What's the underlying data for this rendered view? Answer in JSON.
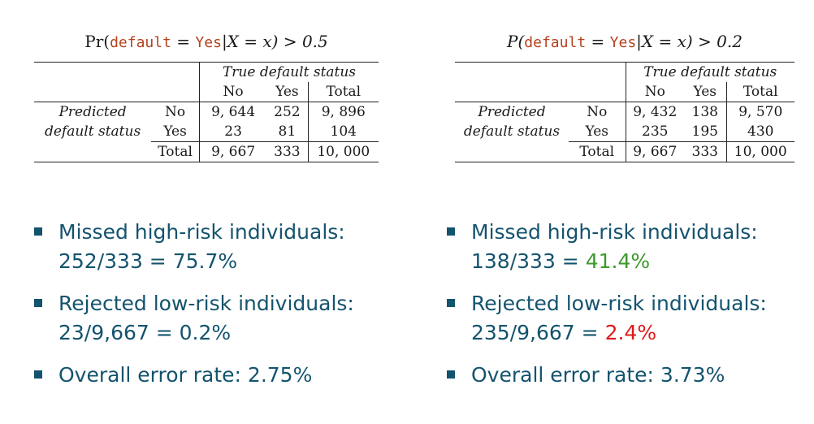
{
  "left_panel": {
    "title": {
      "prefix": "Pr(",
      "code": "default",
      "eq": " = ",
      "code2": "Yes",
      "cond": "|X = x) > 0.5"
    },
    "table": {
      "header_group": "True default status",
      "col_headers": [
        "No",
        "Yes",
        "Total"
      ],
      "row_group_lines": [
        "Predicted",
        "default status"
      ],
      "rows": [
        {
          "label": "No",
          "cells": [
            "9, 644",
            "252",
            "9, 896"
          ]
        },
        {
          "label": "Yes",
          "cells": [
            "23",
            "81",
            "104"
          ]
        }
      ],
      "total_row": {
        "label": "Total",
        "cells": [
          "9, 667",
          "333",
          "10, 000"
        ]
      }
    }
  },
  "right_panel": {
    "title": {
      "prefix": "P(",
      "code": "default",
      "eq": " = ",
      "code2": "Yes",
      "cond": "|X = x) > 0.2"
    },
    "table": {
      "header_group": "True default status",
      "col_headers": [
        "No",
        "Yes",
        "Total"
      ],
      "row_group_lines": [
        "Predicted",
        "default status"
      ],
      "rows": [
        {
          "label": "No",
          "cells": [
            "9, 432",
            "138",
            "9, 570"
          ]
        },
        {
          "label": "Yes",
          "cells": [
            "235",
            "195",
            "430"
          ]
        }
      ],
      "total_row": {
        "label": "Total",
        "cells": [
          "9, 667",
          "333",
          "10, 000"
        ]
      }
    }
  },
  "left_bullets": [
    {
      "line1": "Missed high-risk individuals:",
      "line2_prefix": "252/333 = ",
      "line2_value": "75.7%"
    },
    {
      "line1": "Rejected low-risk individuals:",
      "line2_prefix": "23/9,667 = ",
      "line2_value": "0.2%"
    },
    {
      "line1": "Overall error rate: 2.75%"
    }
  ],
  "right_bullets": [
    {
      "line1": "Missed high-risk individuals:",
      "line2_prefix": "138/333 = ",
      "line2_value": "41.4%"
    },
    {
      "line1": "Rejected low-risk individuals:",
      "line2_prefix": "235/9,667 = ",
      "line2_value": "2.4%"
    },
    {
      "line1": "Overall error rate: 3.73%"
    }
  ],
  "colors": {
    "text_blue": "#14536e",
    "code_orange": "#b5411e",
    "improved_green": "#3e9a2e",
    "worse_red": "#e11a1a"
  }
}
